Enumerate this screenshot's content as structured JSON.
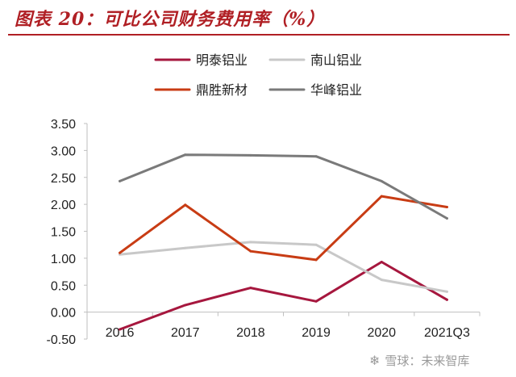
{
  "title": "图表 20：可比公司财务费用率（%）",
  "watermark": {
    "icon": "snowflake-icon",
    "text": "雪球：未来智库"
  },
  "chart_data": {
    "type": "line",
    "title": "图表 20：可比公司财务费用率（%）",
    "xlabel": "",
    "ylabel": "",
    "categories": [
      "2016",
      "2017",
      "2018",
      "2019",
      "2020",
      "2021Q3"
    ],
    "ylim": [
      -0.5,
      3.5
    ],
    "yticks": [
      "-0.50",
      "0.00",
      "0.50",
      "1.00",
      "1.50",
      "2.00",
      "2.50",
      "3.00",
      "3.50"
    ],
    "grid": false,
    "legend_position": "top",
    "series": [
      {
        "name": "明泰铝业",
        "color": "#a6173e",
        "values": [
          -0.32,
          0.13,
          0.45,
          0.2,
          0.93,
          0.23
        ]
      },
      {
        "name": "南山铝业",
        "color": "#c8c8c8",
        "values": [
          1.07,
          1.19,
          1.3,
          1.25,
          0.6,
          0.38
        ]
      },
      {
        "name": "鼎胜新材",
        "color": "#c83c14",
        "values": [
          1.1,
          1.99,
          1.13,
          0.97,
          2.15,
          1.95
        ]
      },
      {
        "name": "华峰铝业",
        "color": "#7a7a7a",
        "values": [
          2.43,
          2.92,
          2.91,
          2.89,
          2.43,
          1.74
        ]
      }
    ]
  }
}
